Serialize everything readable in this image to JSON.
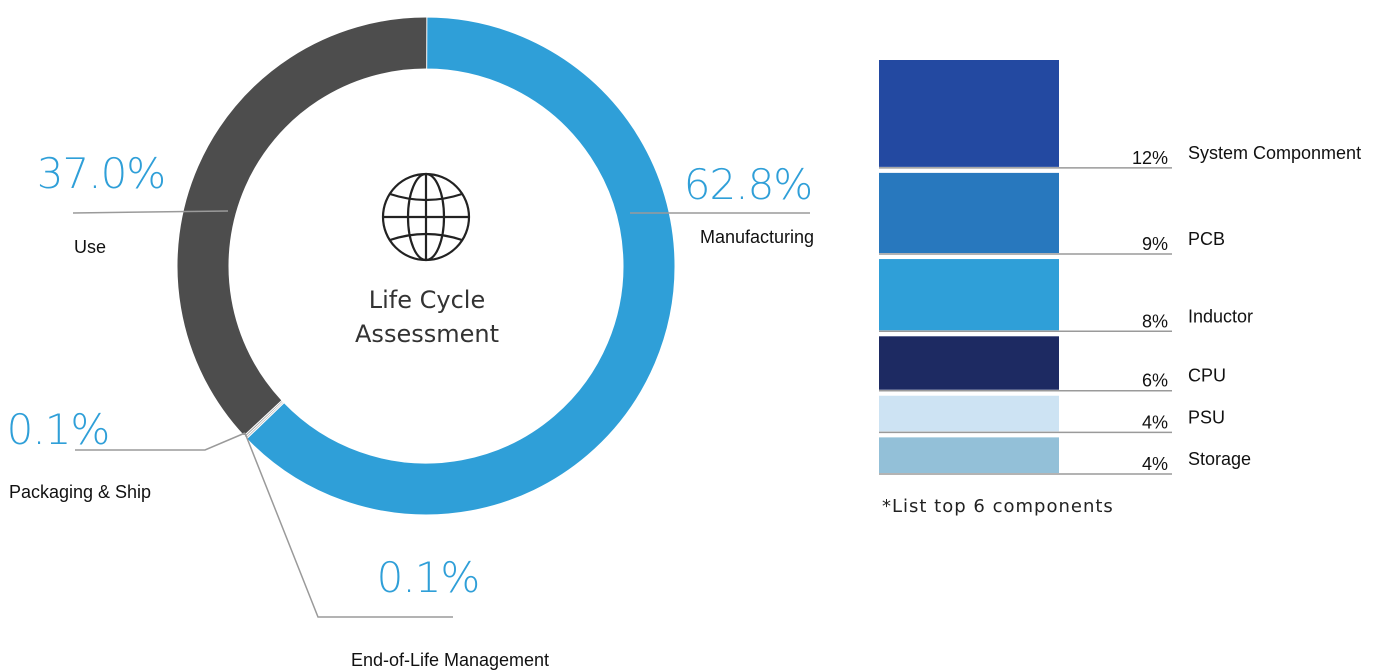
{
  "colors": {
    "manufacturing": "#2f9fd8",
    "use": "#4d4d4d",
    "packaging": "#9a9a9a",
    "eol": "#bcbcbc",
    "pct_text": "#2f9fd8",
    "leader": "#9a9a9a"
  },
  "center": {
    "icon": "globe-icon",
    "line1": "Life Cycle",
    "line2": "Assessment"
  },
  "note": "*List top 6 components",
  "chart_data": [
    {
      "type": "pie",
      "variant": "donut",
      "title": "",
      "slices": [
        {
          "label": "Manufacturing",
          "value": 62.8,
          "display": "62.8%",
          "color": "#2f9fd8"
        },
        {
          "label": "End-of-Life Management",
          "value": 0.1,
          "display": "0.1%",
          "color": "#bcbcbc"
        },
        {
          "label": "Packaging & Ship",
          "value": 0.1,
          "display": "0.1%",
          "color": "#9a9a9a"
        },
        {
          "label": "Use",
          "value": 37.0,
          "display": "37.0%",
          "color": "#4d4d4d"
        }
      ],
      "legend": "none"
    },
    {
      "type": "bar",
      "orientation": "stacked-vertical",
      "title": "",
      "categories": [
        "System Componment",
        "PCB",
        "Inductor",
        "CPU",
        "PSU",
        "Storage"
      ],
      "values": [
        12,
        9,
        8,
        6,
        4,
        4
      ],
      "value_labels": [
        "12%",
        "9%",
        "8%",
        "6%",
        "4%",
        "4%"
      ],
      "colors": [
        "#2349a1",
        "#2878be",
        "#2f9fd8",
        "#1d2a62",
        "#cde3f3",
        "#93c0d8"
      ],
      "legend": "none"
    }
  ]
}
